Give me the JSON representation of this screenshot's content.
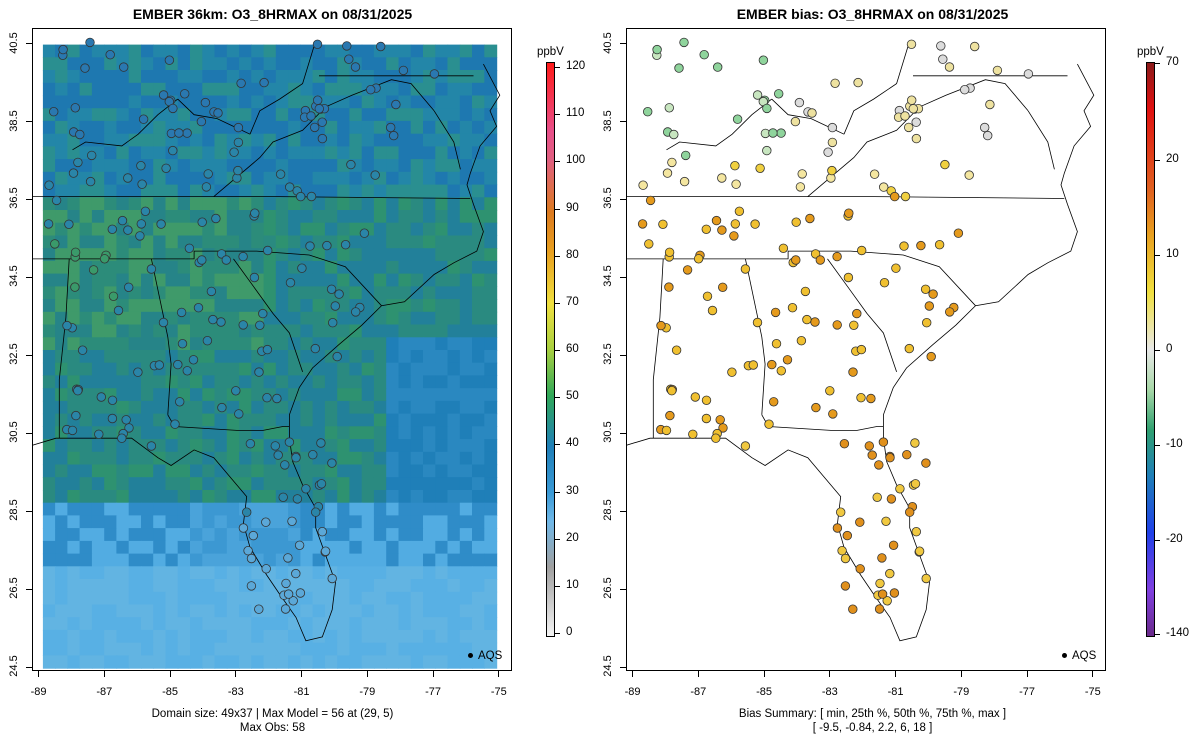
{
  "left_panel": {
    "title": "EMBER 36km: O3_8HRMAX on 08/31/2025",
    "caption_line1": "Domain size: 49x37 | Max Model = 56 at (29, 5)",
    "caption_line2": "Max Obs: 58",
    "colorbar_unit": "ppbV",
    "colorbar_labels": [
      "120",
      "110",
      "100",
      "90",
      "80",
      "70",
      "60",
      "50",
      "40",
      "30",
      "20",
      "10",
      "0"
    ],
    "legend_label": "AQS"
  },
  "right_panel": {
    "title": "EMBER bias: O3_8HRMAX on 08/31/2025",
    "caption_line1": "Bias Summary: [ min, 25th %, 50th %, 75th %, max ]",
    "caption_line2": "[ -9.5,  -0.84,  2.2,  6,  18 ]",
    "colorbar_unit": "ppbV",
    "colorbar_labels": [
      "70",
      "20",
      "10",
      "0",
      "-10",
      "-20",
      "-140"
    ],
    "legend_label": "AQS"
  },
  "axes": {
    "x_ticks": [
      "-89",
      "-87",
      "-85",
      "-83",
      "-81",
      "-79",
      "-77",
      "-75"
    ],
    "y_ticks": [
      "40.5",
      "38.5",
      "36.5",
      "34.5",
      "32.5",
      "30.5",
      "28.5",
      "26.5",
      "24.5"
    ],
    "lon_range": [
      -89.2,
      -74.6
    ],
    "lat_range": [
      24.4,
      40.9
    ]
  },
  "colors": {
    "model_high": "#3a9a6a",
    "model_mid": "#1f7fb8",
    "model_low": "#58b0e4",
    "bias_pos": "#e59a1c",
    "bias_neg": "#8fd49c",
    "bias_zero": "#f0f0f0"
  }
}
